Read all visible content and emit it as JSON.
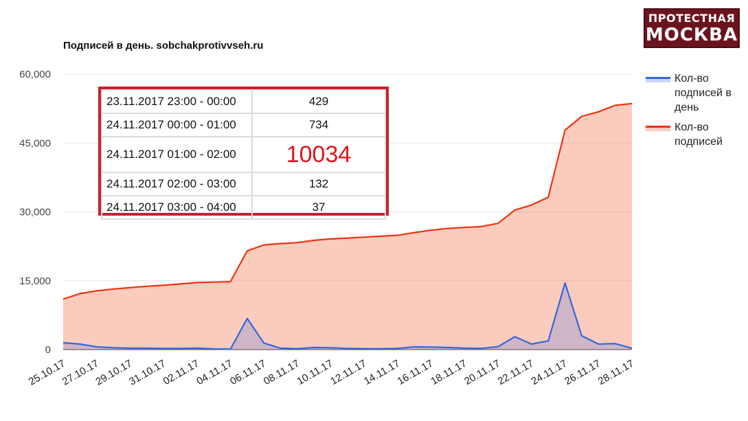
{
  "logo": {
    "line1": "ПРОТЕСТНАЯ",
    "line2": "МОСКВА"
  },
  "legend": [
    {
      "label": "Кол-во подписей в день",
      "color": "#3366dd"
    },
    {
      "label": "Кол-во подписей",
      "color": "#ee3311"
    }
  ],
  "table": [
    {
      "time": "23.11.2017 23:00 - 00:00",
      "value": "429"
    },
    {
      "time": "24.11.2017 00:00 - 01:00",
      "value": "734"
    },
    {
      "time": "24.11.2017 01:00 - 02:00",
      "value": "10034"
    },
    {
      "time": "24.11.2017 02:00 - 03:00",
      "value": "132"
    },
    {
      "time": "24.11.2017 03:00 - 04:00",
      "value": "37"
    }
  ],
  "chart_data": {
    "type": "area",
    "title": "Подписей в день. sobchakprotivvseh.ru",
    "ylim": [
      0,
      60000
    ],
    "yticks": [
      0,
      15000,
      30000,
      45000,
      60000
    ],
    "ytick_labels": [
      "0",
      "15,000",
      "30,000",
      "45,000",
      "60,000"
    ],
    "x_dates": [
      "25.10.17",
      "26.10.17",
      "27.10.17",
      "28.10.17",
      "29.10.17",
      "30.10.17",
      "31.10.17",
      "01.11.17",
      "02.11.17",
      "03.11.17",
      "04.11.17",
      "05.11.17",
      "06.11.17",
      "07.11.17",
      "08.11.17",
      "09.11.17",
      "10.11.17",
      "11.11.17",
      "12.11.17",
      "13.11.17",
      "14.11.17",
      "15.11.17",
      "16.11.17",
      "17.11.17",
      "18.11.17",
      "19.11.17",
      "20.11.17",
      "21.11.17",
      "22.11.17",
      "23.11.17",
      "24.11.17",
      "25.11.17",
      "26.11.17",
      "27.11.17",
      "28.11.17"
    ],
    "xtick_labels": [
      "25.10.17",
      "27.10.17",
      "29.10.17",
      "31.10.17",
      "02.11.17",
      "04.11.17",
      "06.11.17",
      "08.11.17",
      "10.11.17",
      "12.11.17",
      "14.11.17",
      "16.11.17",
      "18.11.17",
      "20.11.17",
      "22.11.17",
      "24.11.17",
      "26.11.17",
      "28.11.17"
    ],
    "grid": true,
    "legend_position": "right",
    "series": [
      {
        "name": "Кол-во подписей в день",
        "color": "#3366dd",
        "values": [
          1500,
          1200,
          600,
          400,
          300,
          300,
          250,
          250,
          300,
          150,
          100,
          6800,
          1400,
          300,
          200,
          450,
          400,
          250,
          200,
          200,
          250,
          600,
          550,
          450,
          300,
          250,
          650,
          2800,
          1200,
          1900,
          14500,
          3000,
          1200,
          1300,
          300
        ]
      },
      {
        "name": "Кол-во подписей",
        "color": "#ee3311",
        "values": [
          11000,
          12200,
          12800,
          13200,
          13500,
          13800,
          14000,
          14300,
          14600,
          14700,
          14800,
          21500,
          22800,
          23100,
          23300,
          23800,
          24100,
          24300,
          24500,
          24700,
          24900,
          25500,
          26000,
          26400,
          26600,
          26800,
          27500,
          30400,
          31500,
          33200,
          47800,
          50800,
          51800,
          53200,
          53600
        ]
      }
    ]
  }
}
